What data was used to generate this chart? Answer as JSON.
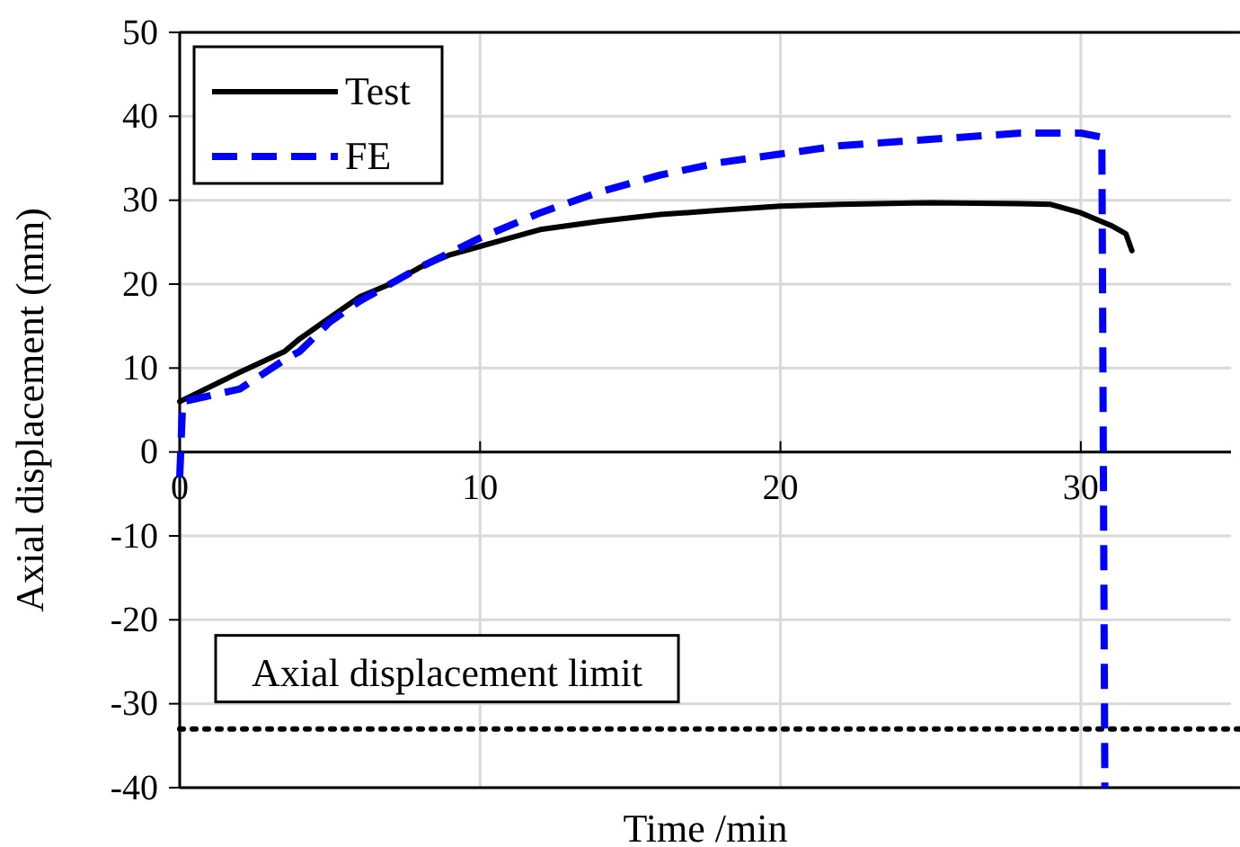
{
  "chart_data": {
    "type": "line",
    "xlabel": "Time /min",
    "ylabel": "Axial displacement (mm)",
    "xlim": [
      0,
      35
    ],
    "xticks": [
      0,
      10,
      20,
      30
    ],
    "ylim": [
      -40,
      50
    ],
    "yticks": [
      -40,
      -30,
      -20,
      -10,
      0,
      10,
      20,
      30,
      40,
      50
    ],
    "grid": true,
    "legend": "top left",
    "series": [
      {
        "name": "Test",
        "color": "#000000",
        "line_style": "solid",
        "x": [
          0,
          2,
          3.5,
          4,
          5,
          6,
          7,
          8,
          9,
          10,
          11,
          12,
          14,
          16,
          18,
          20,
          22,
          25,
          28,
          29,
          30,
          31,
          31.5,
          31.7
        ],
        "values": [
          6,
          9.5,
          12,
          13.5,
          16,
          18.5,
          20,
          22,
          23.5,
          24.5,
          25.5,
          26.5,
          27.5,
          28.3,
          28.8,
          29.3,
          29.5,
          29.7,
          29.6,
          29.5,
          28.5,
          27,
          26,
          24
        ]
      },
      {
        "name": "FE",
        "color": "#0000ff",
        "line_style": "dashed",
        "x": [
          0,
          0.1,
          2,
          3.5,
          4,
          5,
          6,
          7,
          8,
          10,
          12,
          14,
          16,
          18,
          20,
          22,
          24,
          26,
          28,
          30,
          30.7,
          30.8
        ],
        "values": [
          -3,
          6,
          7.5,
          11,
          12,
          15.5,
          18,
          20,
          22,
          25.5,
          28.5,
          31,
          33,
          34.5,
          35.5,
          36.5,
          37,
          37.5,
          38,
          38,
          37.5,
          -40
        ]
      }
    ],
    "ref_lines": [
      {
        "axis": "y",
        "value": -33,
        "label": "Axial displacement limit",
        "color": "#000000",
        "line_style": "dotted"
      }
    ]
  }
}
